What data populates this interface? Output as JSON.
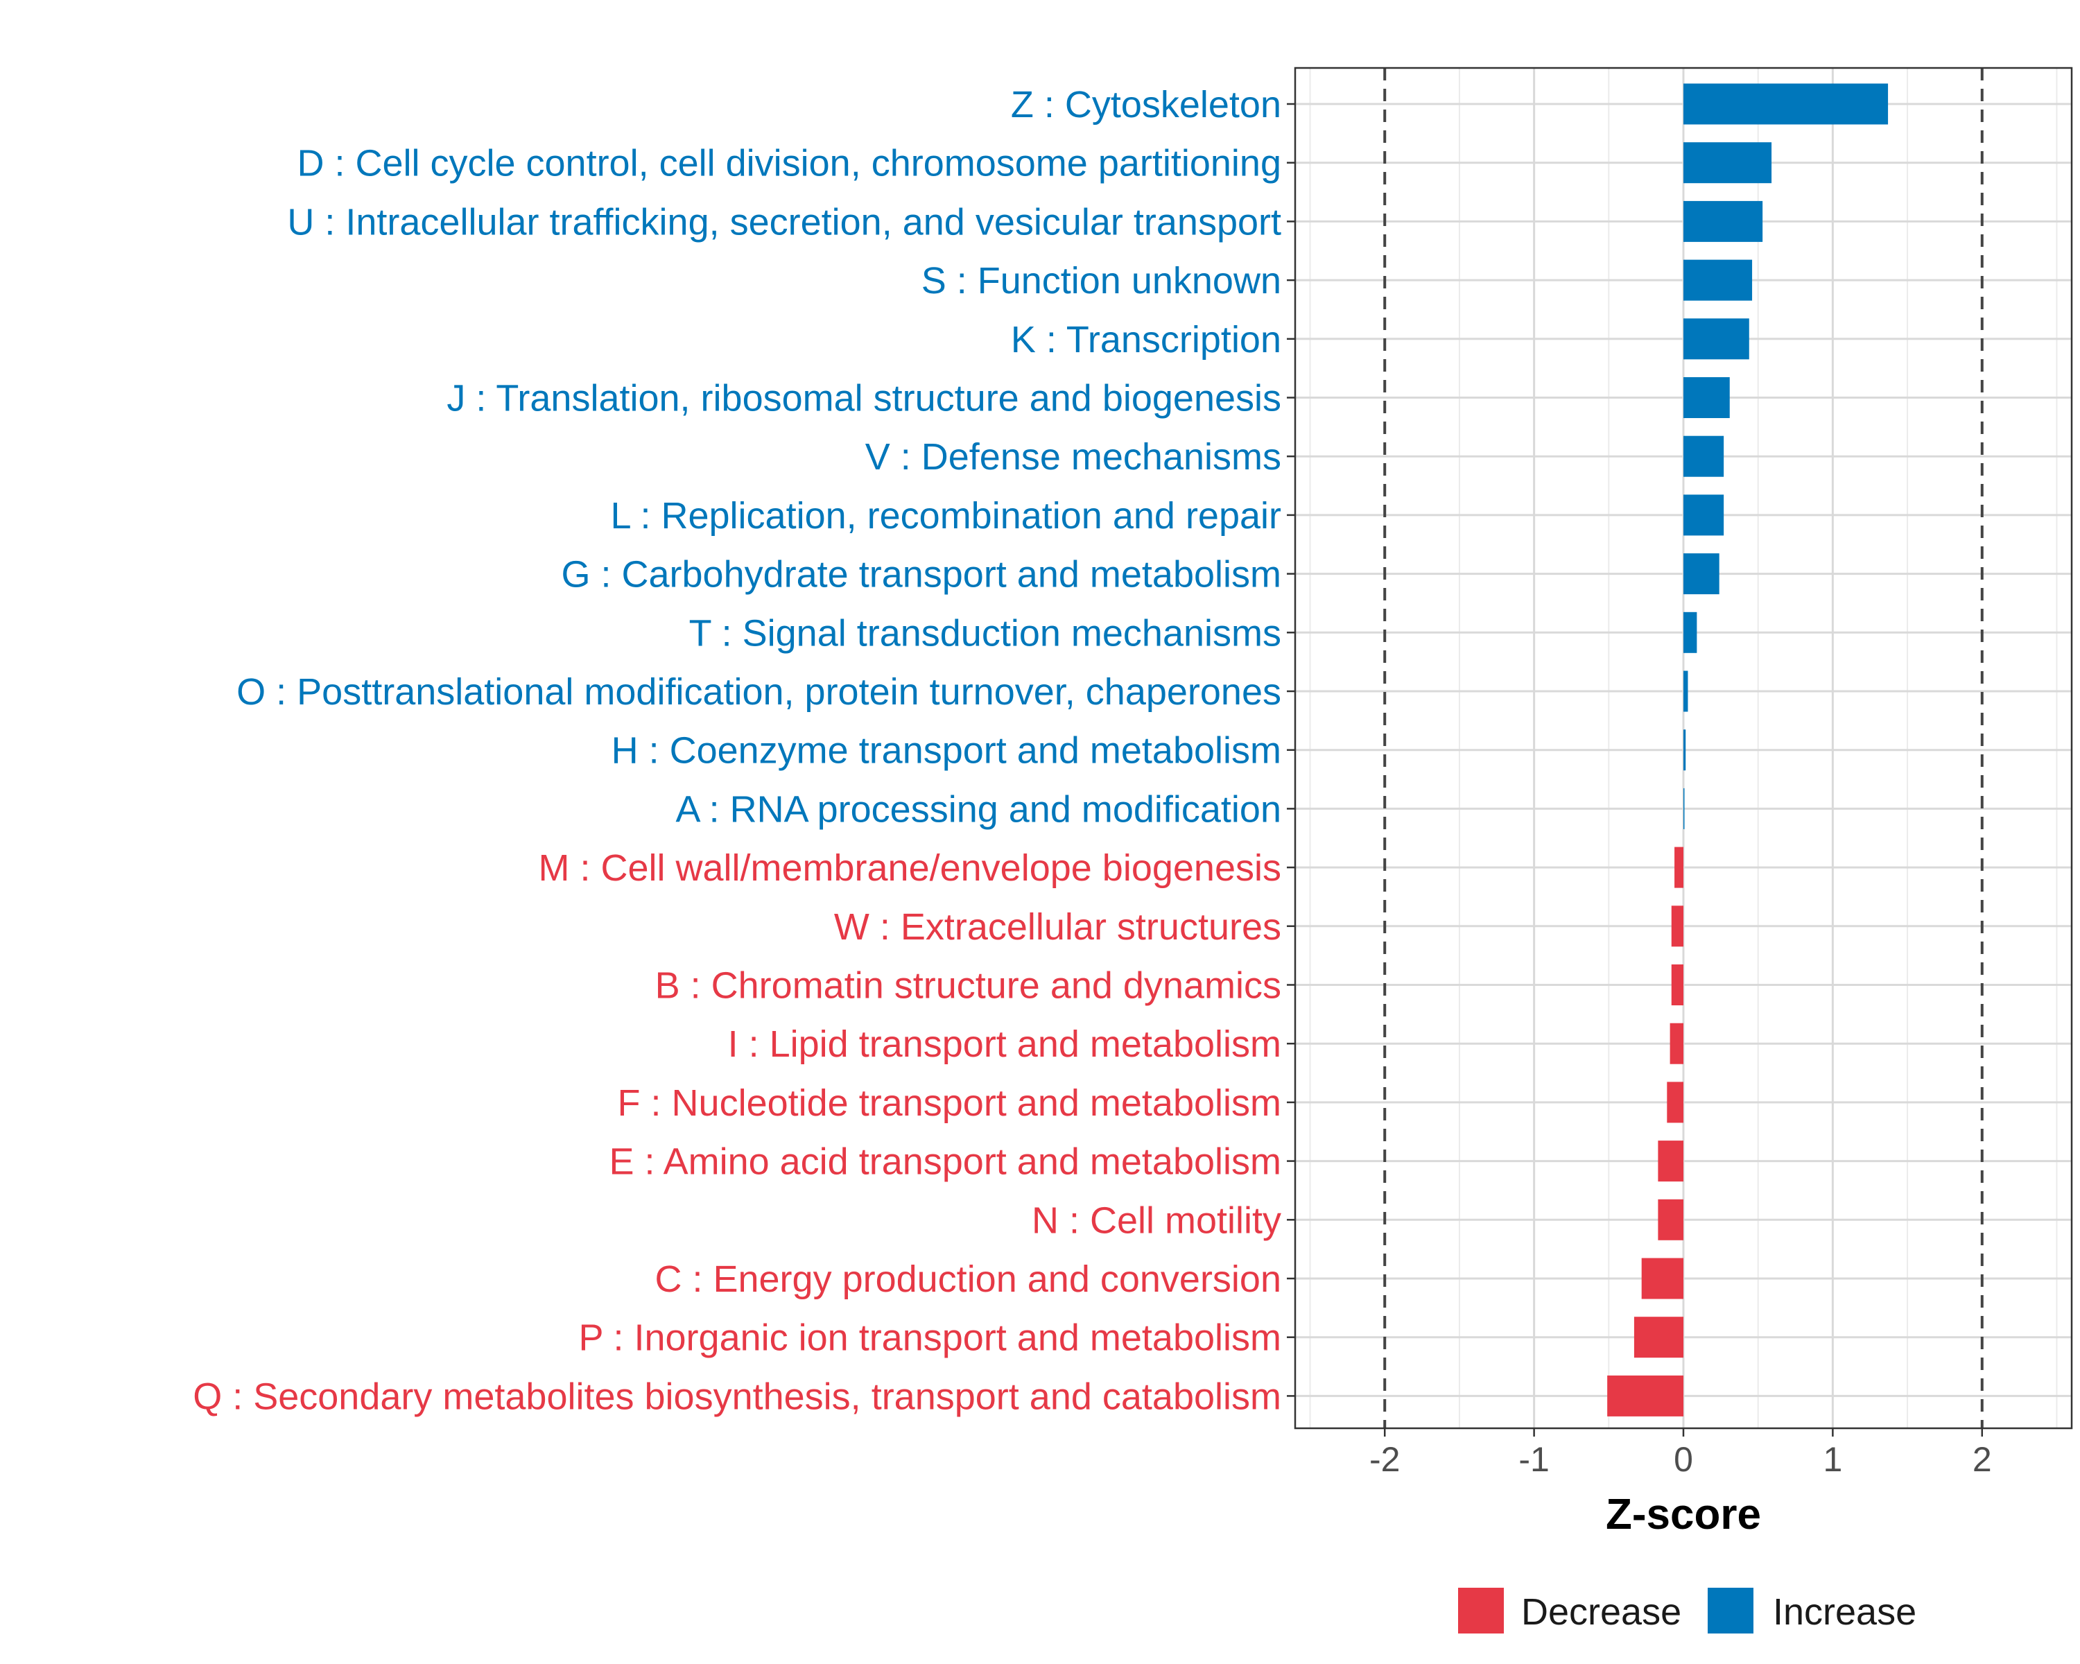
{
  "chart_data": {
    "type": "bar",
    "orientation": "horizontal",
    "title": "",
    "xlabel": "Z-score",
    "ylabel": "",
    "xlim": [
      -2.6,
      2.6
    ],
    "xticks": [
      -2,
      -1,
      0,
      1,
      2
    ],
    "xtick_labels": [
      "-2",
      "-1",
      "0",
      "1",
      "2"
    ],
    "reference_lines": [
      -2,
      2
    ],
    "grid": true,
    "categories": [
      "Z : Cytoskeleton",
      "D : Cell cycle control, cell division, chromosome partitioning",
      "U : Intracellular trafficking, secretion, and vesicular transport",
      "S : Function unknown",
      "K : Transcription",
      "J : Translation, ribosomal structure and biogenesis",
      "V : Defense mechanisms",
      "L : Replication, recombination and repair",
      "G : Carbohydrate transport and metabolism",
      "T : Signal transduction mechanisms",
      "O : Posttranslational modification, protein turnover, chaperones",
      "H : Coenzyme transport and metabolism",
      "A : RNA processing and modification",
      "M : Cell wall/membrane/envelope biogenesis",
      "W : Extracellular structures",
      "B : Chromatin structure and dynamics",
      "I : Lipid transport and metabolism",
      "F : Nucleotide transport and metabolism",
      "E : Amino acid transport and metabolism",
      "N : Cell motility",
      "C : Energy production and conversion",
      "P : Inorganic ion transport and metabolism",
      "Q : Secondary metabolites biosynthesis, transport and catabolism"
    ],
    "values": [
      1.37,
      0.59,
      0.53,
      0.46,
      0.44,
      0.31,
      0.27,
      0.27,
      0.24,
      0.09,
      0.03,
      0.015,
      0.005,
      -0.06,
      -0.08,
      -0.08,
      -0.09,
      -0.11,
      -0.17,
      -0.17,
      -0.28,
      -0.33,
      -0.51
    ],
    "groups": [
      "Increase",
      "Increase",
      "Increase",
      "Increase",
      "Increase",
      "Increase",
      "Increase",
      "Increase",
      "Increase",
      "Increase",
      "Increase",
      "Increase",
      "Increase",
      "Decrease",
      "Decrease",
      "Decrease",
      "Decrease",
      "Decrease",
      "Decrease",
      "Decrease",
      "Decrease",
      "Decrease",
      "Decrease"
    ],
    "legend": {
      "position": "bottom",
      "entries": [
        {
          "name": "Decrease",
          "color": "#E63946"
        },
        {
          "name": "Increase",
          "color": "#0077BB"
        }
      ]
    },
    "colors": {
      "Increase": "#0077BB",
      "Decrease": "#E63946"
    }
  }
}
